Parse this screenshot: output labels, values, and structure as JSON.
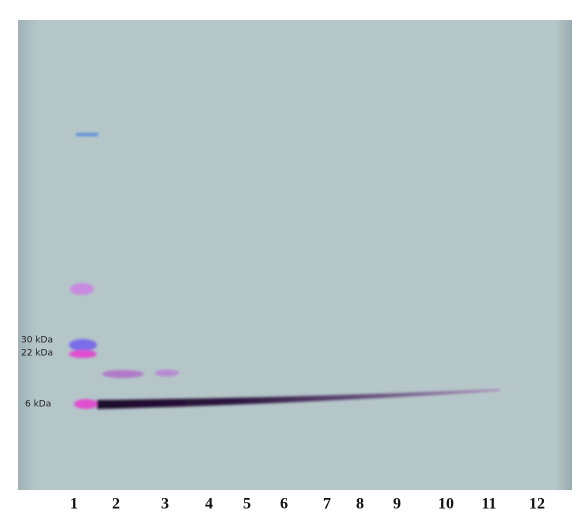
{
  "markers": [
    "30 kDa",
    "22 kDa",
    "6 kDa"
  ],
  "lanes": [
    "1",
    "2",
    "3",
    "4",
    "5",
    "6",
    "7",
    "8",
    "9",
    "10",
    "11",
    "12"
  ]
}
